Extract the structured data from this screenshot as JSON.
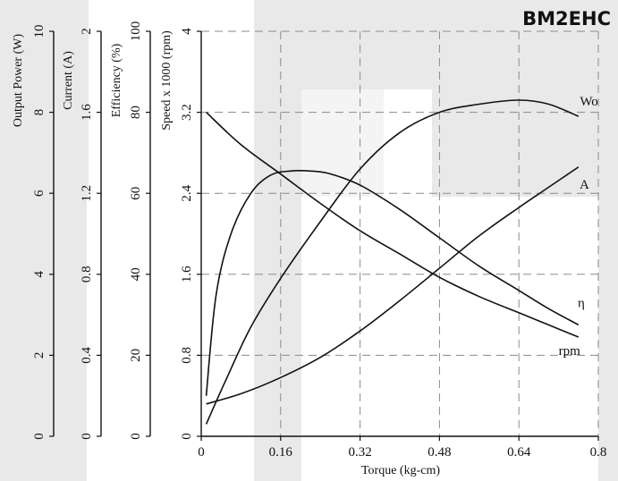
{
  "chart_data": {
    "type": "line",
    "title": "BM2EHC",
    "xlabel": "Torque (kg-cm)",
    "xlim": [
      0,
      0.8
    ],
    "x_ticks": [
      0,
      0.16,
      0.32,
      0.48,
      0.64,
      0.8
    ],
    "x_tick_labels": [
      "0",
      "0.16",
      "0.32",
      "0.48",
      "0.64",
      "0.8"
    ],
    "grid": true,
    "axes": [
      {
        "label": "Output Power (W)",
        "range": [
          0,
          10
        ],
        "tick_labels": [
          "0",
          "2",
          "4",
          "6",
          "8",
          "10"
        ]
      },
      {
        "label": "Current (A)",
        "range": [
          0,
          2
        ],
        "tick_labels": [
          "0",
          "0.4",
          "0.8",
          "1.2",
          "1.6",
          "2"
        ]
      },
      {
        "label": "Efficiency (%)",
        "range": [
          0,
          100
        ],
        "tick_labels": [
          "0",
          "20",
          "40",
          "60",
          "80",
          "100"
        ]
      },
      {
        "label": "Speed x 1000 (rpm)",
        "range": [
          0,
          4
        ],
        "tick_labels": [
          "0",
          "0.8",
          "1.6",
          "2.4",
          "3.2",
          "4"
        ]
      }
    ],
    "series": [
      {
        "name": "Wo",
        "axis": "Output Power (W)",
        "x": [
          0.01,
          0.05,
          0.1,
          0.16,
          0.24,
          0.32,
          0.4,
          0.48,
          0.56,
          0.64,
          0.7,
          0.76
        ],
        "values": [
          0.3,
          1.4,
          2.7,
          3.9,
          5.3,
          6.6,
          7.5,
          8.0,
          8.2,
          8.3,
          8.2,
          7.9
        ]
      },
      {
        "name": "A",
        "axis": "Current (A)",
        "x": [
          0.01,
          0.08,
          0.16,
          0.24,
          0.32,
          0.4,
          0.48,
          0.56,
          0.64,
          0.7,
          0.76
        ],
        "values": [
          0.16,
          0.21,
          0.29,
          0.39,
          0.52,
          0.67,
          0.83,
          0.99,
          1.13,
          1.23,
          1.33
        ]
      },
      {
        "name": "η",
        "axis": "Efficiency (%)",
        "x": [
          0.01,
          0.03,
          0.06,
          0.1,
          0.14,
          0.18,
          0.22,
          0.26,
          0.32,
          0.4,
          0.48,
          0.56,
          0.64,
          0.7,
          0.76
        ],
        "values": [
          10,
          35,
          50,
          60,
          64.5,
          65.5,
          65.5,
          64.8,
          62,
          56,
          49,
          42,
          36,
          31.5,
          27.5
        ]
      },
      {
        "name": "rpm",
        "axis": "Speed x 1000 (rpm)",
        "x": [
          0.01,
          0.08,
          0.16,
          0.24,
          0.32,
          0.4,
          0.48,
          0.56,
          0.64,
          0.7,
          0.76
        ],
        "values": [
          3.2,
          2.88,
          2.59,
          2.3,
          2.03,
          1.8,
          1.57,
          1.38,
          1.22,
          1.1,
          0.98
        ]
      }
    ]
  }
}
